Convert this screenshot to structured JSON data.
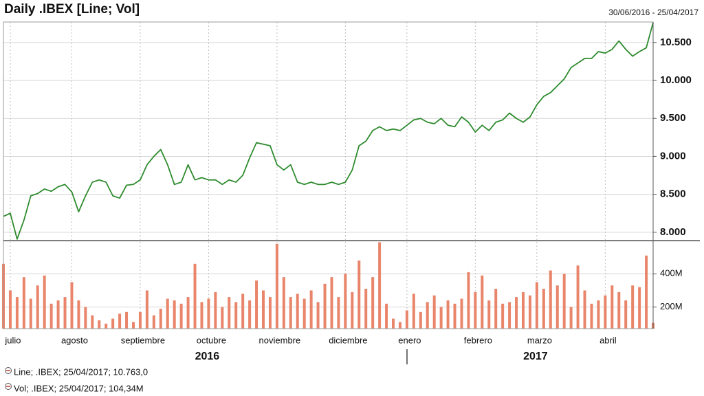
{
  "chart_data": [
    {
      "type": "line",
      "title": "Daily .IBEX [Line; Vol]",
      "subtitle": "30/06/2016 - 25/04/2017",
      "ylim": [
        7890,
        10770
      ],
      "yticks": [
        {
          "value": 8000,
          "label": "8.000"
        },
        {
          "value": 8500,
          "label": "8.500"
        },
        {
          "value": 9000,
          "label": "9.000"
        },
        {
          "value": 9500,
          "label": "9.500"
        },
        {
          "value": 10000,
          "label": "10.000"
        },
        {
          "value": 10500,
          "label": "10.500"
        }
      ],
      "grid": true,
      "series": [
        {
          "name": "Line; .IBEX; 25/04/2017; 10.763,0",
          "color": "#2e8b2e",
          "values": [
            8210,
            8250,
            7910,
            8160,
            8480,
            8510,
            8570,
            8540,
            8600,
            8630,
            8530,
            8270,
            8480,
            8660,
            8690,
            8660,
            8480,
            8450,
            8620,
            8630,
            8690,
            8890,
            9000,
            9090,
            8890,
            8630,
            8660,
            8890,
            8690,
            8720,
            8690,
            8690,
            8630,
            8690,
            8660,
            8750,
            8980,
            9180,
            9160,
            9140,
            8890,
            8820,
            8890,
            8660,
            8630,
            8660,
            8630,
            8630,
            8660,
            8630,
            8660,
            8820,
            9140,
            9200,
            9340,
            9390,
            9340,
            9360,
            9340,
            9410,
            9480,
            9500,
            9450,
            9430,
            9500,
            9410,
            9390,
            9520,
            9450,
            9320,
            9410,
            9340,
            9450,
            9480,
            9570,
            9500,
            9450,
            9520,
            9680,
            9790,
            9840,
            9930,
            10020,
            10170,
            10230,
            10290,
            10290,
            10380,
            10360,
            10410,
            10520,
            10410,
            10320,
            10380,
            10430,
            10763
          ]
        }
      ]
    },
    {
      "type": "bar",
      "categories": [
        null,
        "julio",
        null,
        null,
        null,
        null,
        null,
        null,
        null,
        null,
        "agosto",
        null,
        null,
        null,
        null,
        null,
        null,
        null,
        null,
        null,
        "septiembre",
        null,
        null,
        null,
        null,
        null,
        null,
        null,
        null,
        null,
        "octubre",
        null,
        null,
        null,
        null,
        null,
        null,
        null,
        null,
        null,
        "noviembre",
        null,
        null,
        null,
        null,
        null,
        null,
        null,
        null,
        null,
        "diciembre",
        null,
        null,
        null,
        null,
        null,
        null,
        null,
        null,
        "enero",
        null,
        null,
        null,
        null,
        null,
        null,
        null,
        null,
        null,
        "febrero",
        null,
        null,
        null,
        null,
        null,
        null,
        null,
        null,
        "marzo",
        null,
        null,
        null,
        null,
        null,
        null,
        null,
        null,
        null,
        "abril",
        null,
        null,
        null,
        null,
        null,
        null,
        null
      ],
      "x_groups": [
        "2016",
        "2017"
      ],
      "ylim": [
        70,
        600
      ],
      "yticks": [
        {
          "value": 200,
          "label": "200M"
        },
        {
          "value": 400,
          "label": "400M"
        }
      ],
      "grid": true,
      "series": [
        {
          "name": "Vol; .IBEX; 25/04/2017; 104,34M",
          "color": "#e8856a",
          "values": [
            460,
            300,
            260,
            380,
            250,
            330,
            390,
            220,
            240,
            260,
            350,
            240,
            200,
            150,
            120,
            100,
            130,
            160,
            170,
            110,
            170,
            300,
            150,
            190,
            250,
            240,
            220,
            260,
            460,
            230,
            250,
            290,
            200,
            260,
            230,
            280,
            240,
            360,
            300,
            260,
            580,
            380,
            260,
            280,
            250,
            300,
            230,
            340,
            380,
            260,
            400,
            290,
            480,
            310,
            380,
            590,
            220,
            130,
            110,
            180,
            280,
            170,
            230,
            270,
            200,
            240,
            220,
            250,
            410,
            290,
            390,
            240,
            310,
            220,
            230,
            260,
            290,
            270,
            350,
            310,
            420,
            330,
            400,
            200,
            450,
            300,
            220,
            240,
            270,
            330,
            290,
            240,
            330,
            320,
            510,
            104.34
          ]
        }
      ]
    }
  ]
}
